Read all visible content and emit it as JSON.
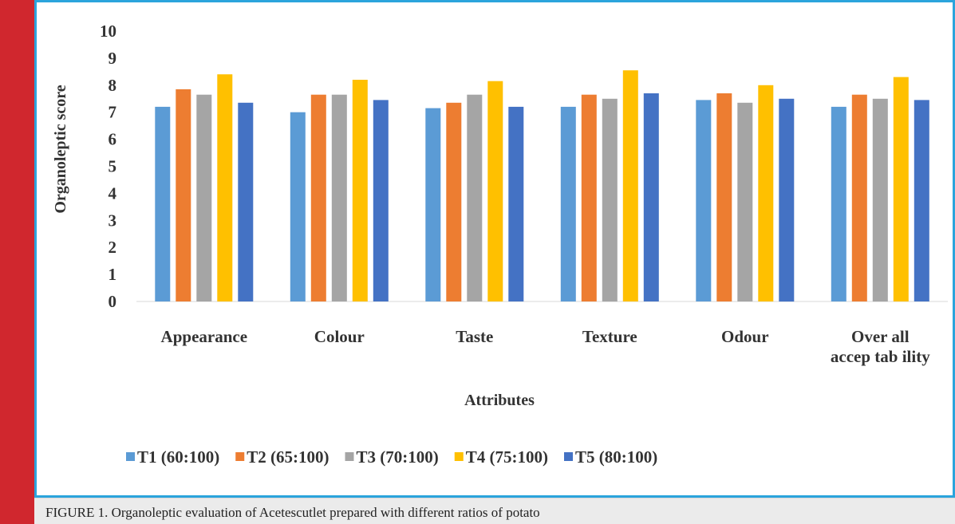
{
  "chart_data": {
    "type": "bar",
    "categories": [
      "Appearance",
      "Colour",
      "Taste",
      "Texture",
      "Odour",
      "Overall acceptability"
    ],
    "category_lines": [
      [
        "Appearance"
      ],
      [
        "Colour"
      ],
      [
        "Taste"
      ],
      [
        "Texture"
      ],
      [
        "Odour"
      ],
      [
        "Over all",
        "accep tab ility"
      ]
    ],
    "series": [
      {
        "name": "T1 (60:100)",
        "color": "#5b9bd5",
        "values": [
          7.2,
          7.0,
          7.15,
          7.2,
          7.45,
          7.2
        ]
      },
      {
        "name": "T2 (65:100)",
        "color": "#ed7d31",
        "values": [
          7.85,
          7.65,
          7.35,
          7.65,
          7.7,
          7.65
        ]
      },
      {
        "name": "T3 (70:100)",
        "color": "#a5a5a5",
        "values": [
          7.65,
          7.65,
          7.65,
          7.5,
          7.35,
          7.5
        ]
      },
      {
        "name": "T4 (75:100)",
        "color": "#ffc000",
        "values": [
          8.4,
          8.2,
          8.15,
          8.55,
          8.0,
          8.3
        ]
      },
      {
        "name": "T5 (80:100)",
        "color": "#4472c4",
        "values": [
          7.35,
          7.45,
          7.2,
          7.7,
          7.5,
          7.45
        ]
      }
    ],
    "xlabel": "Attributes",
    "ylabel": "Organoleptic score",
    "ylim": [
      0,
      10
    ],
    "yticks": [
      0,
      1,
      2,
      3,
      4,
      5,
      6,
      7,
      8,
      9,
      10
    ],
    "grid": false,
    "legend_position": "bottom"
  },
  "caption": "FIGURE 1. Organoleptic evaluation of Acetescutlet prepared with different ratios of potato",
  "colors": {
    "left_bar": "#d0272e",
    "frame_border": "#2ba4dc",
    "caption_background": "#ebebeb"
  }
}
